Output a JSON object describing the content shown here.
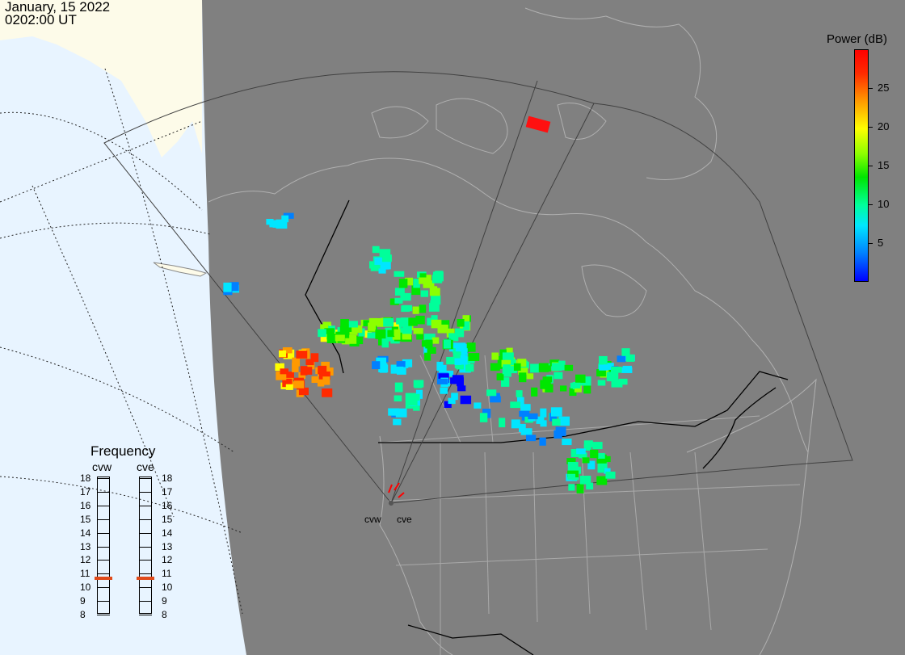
{
  "header": {
    "date": "January, 15 2022",
    "time": "0202:00 UT"
  },
  "frequency_panel": {
    "title": "Frequency",
    "radars": [
      {
        "name": "cvw",
        "selected_mhz": 11
      },
      {
        "name": "cve",
        "selected_mhz": 11
      }
    ],
    "ticks": [
      "18",
      "17",
      "16",
      "15",
      "14",
      "13",
      "12",
      "11",
      "10",
      "9",
      "8"
    ]
  },
  "legend": {
    "title": "Power (dB)",
    "ticks": [
      "25",
      "20",
      "15",
      "10",
      "5"
    ],
    "range": [
      0,
      30
    ]
  },
  "map_labels": {
    "site_west": "cvw",
    "site_east": "cve"
  },
  "colors": {
    "ocean": "#e8f4ff",
    "land_day": "#fdfbe9",
    "night": "#808080",
    "coast": "#bcbcbc",
    "marker": "#e04a1a"
  }
}
